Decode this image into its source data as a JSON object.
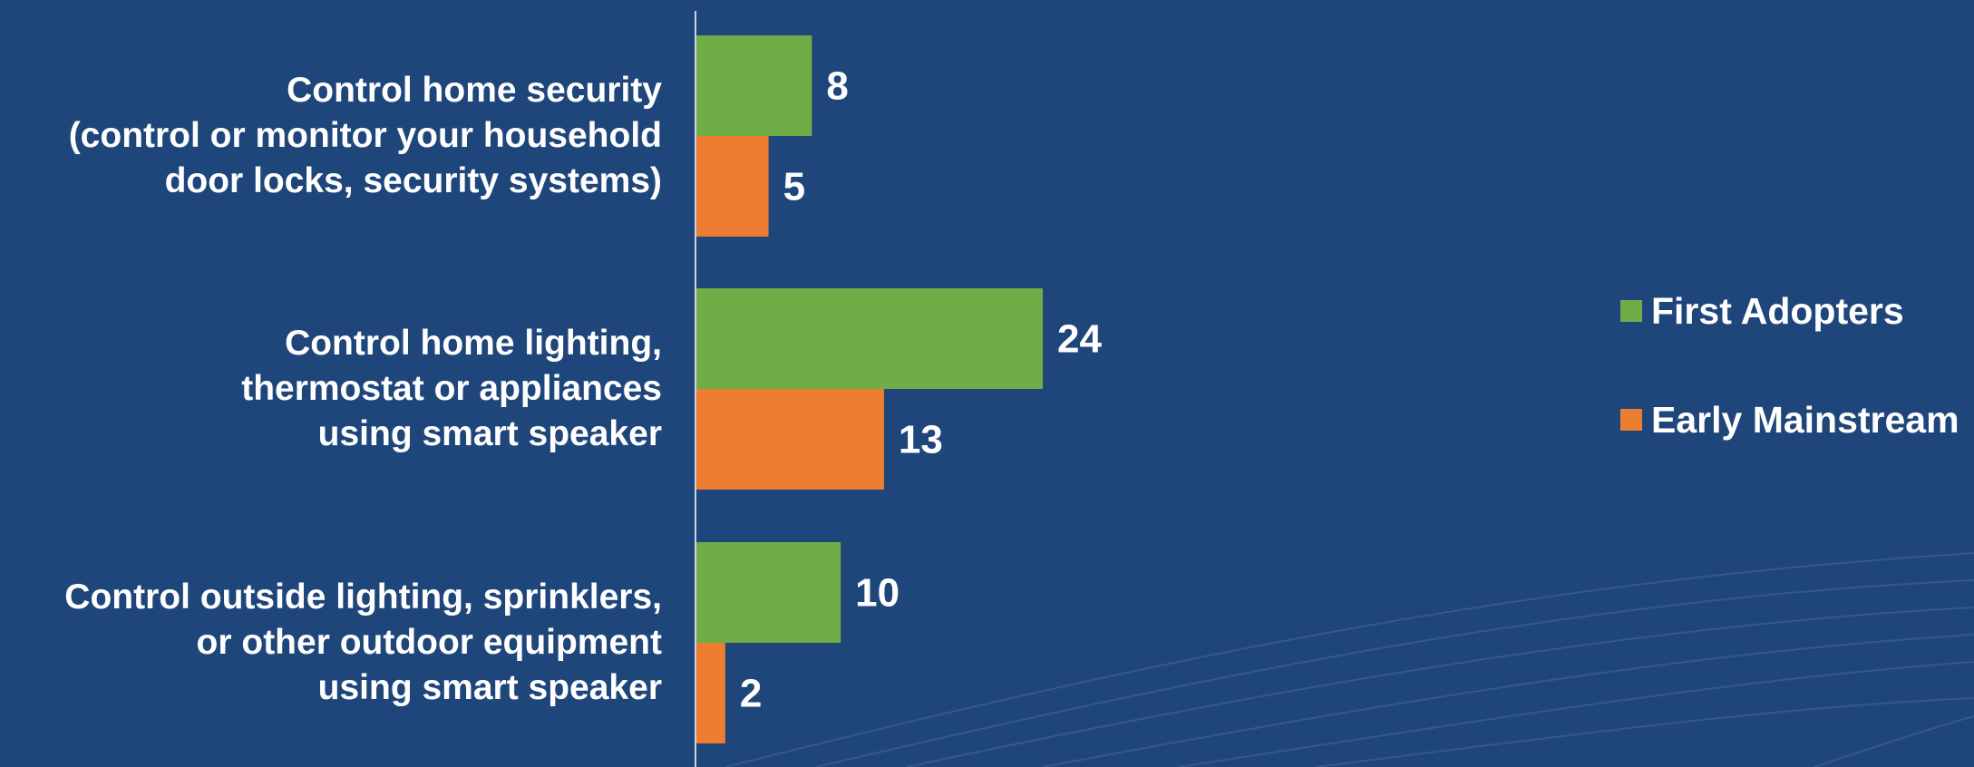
{
  "chart_data": {
    "type": "bar",
    "orientation": "horizontal",
    "categories": [
      "Control home security \n(control or monitor your household\ndoor locks, security systems)",
      "Control home lighting,\nthermostat or appliances\nusing smart speaker ",
      "Control outside lighting, sprinklers,\nor other outdoor equipment \nusing smart speaker "
    ],
    "series": [
      {
        "name": "First Adopters",
        "color": "#70ad47",
        "values": [
          8,
          24,
          10
        ]
      },
      {
        "name": "Early Mainstream",
        "color": "#ed7d31",
        "values": [
          5,
          13,
          2
        ]
      }
    ],
    "xlim": [
      0,
      24
    ],
    "grid": false,
    "legend_position": "right"
  }
}
